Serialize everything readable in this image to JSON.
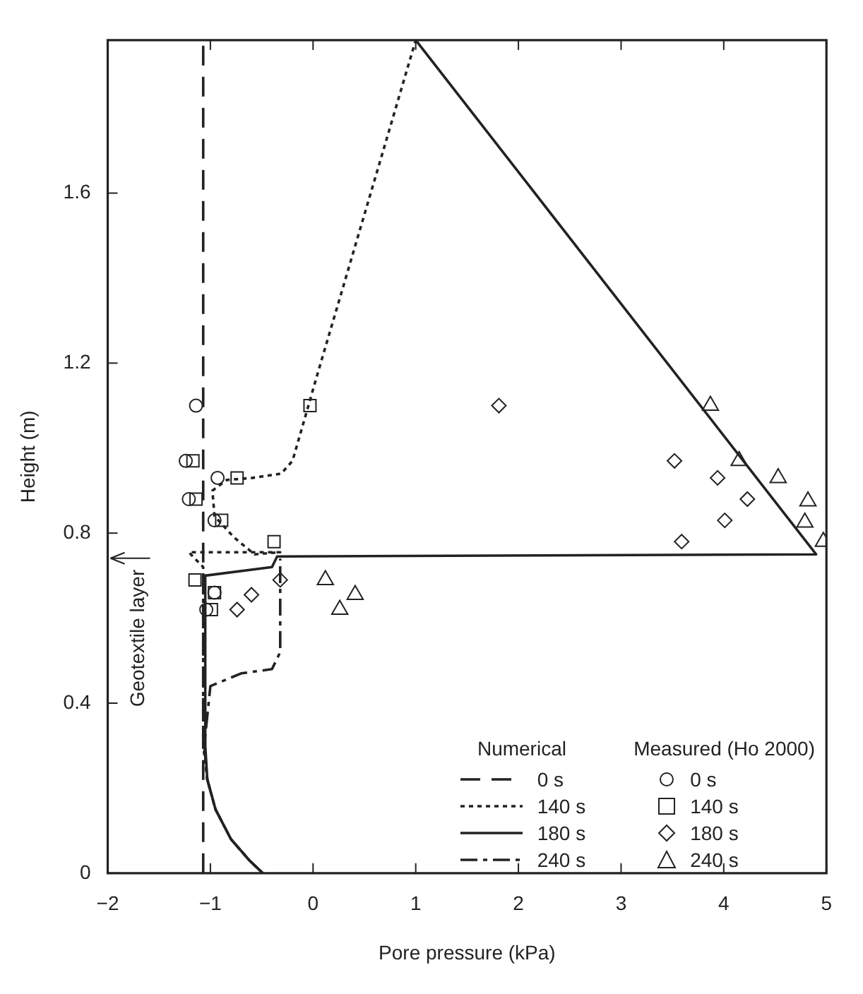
{
  "chart_data": {
    "type": "line",
    "xlabel": "Pore pressure (kPa)",
    "ylabel": "Height (m)",
    "legend_title": "Numerical",
    "legend": "bottom right",
    "grid": false,
    "xlim": [
      -2,
      5
    ],
    "xticks": [
      {
        "value": -2,
        "label": "−2"
      },
      {
        "value": -1,
        "label": "−1"
      },
      0,
      1,
      2,
      3,
      4,
      5
    ],
    "ylim": [
      0,
      1.96
    ],
    "yticks": [
      0,
      0.4,
      0.8,
      1.2,
      1.6
    ],
    "annotations": [
      "Measured (Ho 2000)",
      "Geotextile layer"
    ],
    "series": [
      {
        "name": "0 s",
        "line_style": "dashed",
        "color": "#222222",
        "x": [
          -1.07,
          -1.07
        ],
        "values": [
          0,
          1.96
        ]
      },
      {
        "name": "140 s",
        "line_style": "dotted",
        "color": "#222222",
        "x": [
          -0.49,
          -0.62,
          -0.8,
          -0.95,
          -1.03,
          -1.07,
          -1.07,
          -1.21,
          -0.32,
          -0.57,
          -0.77,
          -0.96,
          -0.98,
          -0.84,
          -0.59,
          -0.31,
          -0.2,
          0.05,
          1.0
        ],
        "values": [
          0,
          0.03,
          0.08,
          0.15,
          0.22,
          0.3,
          0.72,
          0.755,
          0.755,
          0.75,
          0.79,
          0.84,
          0.9,
          0.925,
          0.93,
          0.94,
          0.97,
          1.18,
          1.96
        ]
      },
      {
        "name": "180 s",
        "line_style": "solid",
        "color": "#222222",
        "x": [
          -0.49,
          -0.62,
          -0.8,
          -0.95,
          -1.03,
          -1.05,
          -1.05,
          -0.4,
          -0.35,
          4.9,
          1.0
        ],
        "values": [
          0,
          0.03,
          0.08,
          0.15,
          0.22,
          0.3,
          0.7,
          0.72,
          0.745,
          0.75,
          1.96
        ]
      },
      {
        "name": "240 s",
        "line_style": "dashdot",
        "color": "#222222",
        "x": [
          -0.49,
          -0.62,
          -0.8,
          -0.95,
          -1.03,
          -1.06,
          -1.0,
          -0.7,
          -0.4,
          -0.32,
          -0.32
        ],
        "values": [
          0,
          0.03,
          0.08,
          0.15,
          0.22,
          0.3,
          0.44,
          0.47,
          0.48,
          0.52,
          0.74
        ]
      },
      {
        "name": "0 s",
        "type": "scatter",
        "marker": "circle",
        "color": "#222222",
        "x": [
          -1.14,
          -1.24,
          -0.93,
          -1.21,
          -0.96,
          -0.96,
          -1.04
        ],
        "values": [
          1.1,
          0.97,
          0.93,
          0.88,
          0.83,
          0.66,
          0.62
        ]
      },
      {
        "name": "140 s",
        "type": "scatter",
        "marker": "square",
        "color": "#222222",
        "x": [
          -0.03,
          -1.17,
          -0.74,
          -1.14,
          -0.89,
          -0.38,
          -1.15,
          -0.96,
          -0.99
        ],
        "values": [
          1.1,
          0.97,
          0.93,
          0.88,
          0.83,
          0.78,
          0.69,
          0.66,
          0.62
        ]
      },
      {
        "name": "180 s",
        "type": "scatter",
        "marker": "diamond",
        "color": "#222222",
        "x": [
          -0.74,
          -0.6,
          -0.32,
          1.81,
          3.52,
          3.94,
          4.23,
          4.01,
          3.59
        ],
        "values": [
          0.62,
          0.655,
          0.69,
          1.1,
          0.97,
          0.93,
          0.88,
          0.83,
          0.78
        ]
      },
      {
        "name": "240 s",
        "type": "scatter",
        "marker": "triangle",
        "color": "#222222",
        "x": [
          0.12,
          0.41,
          0.26,
          3.87,
          4.15,
          4.53,
          4.82,
          4.79,
          4.97
        ],
        "values": [
          0.69,
          0.655,
          0.62,
          1.1,
          0.97,
          0.93,
          0.875,
          0.825,
          0.78
        ]
      }
    ]
  }
}
